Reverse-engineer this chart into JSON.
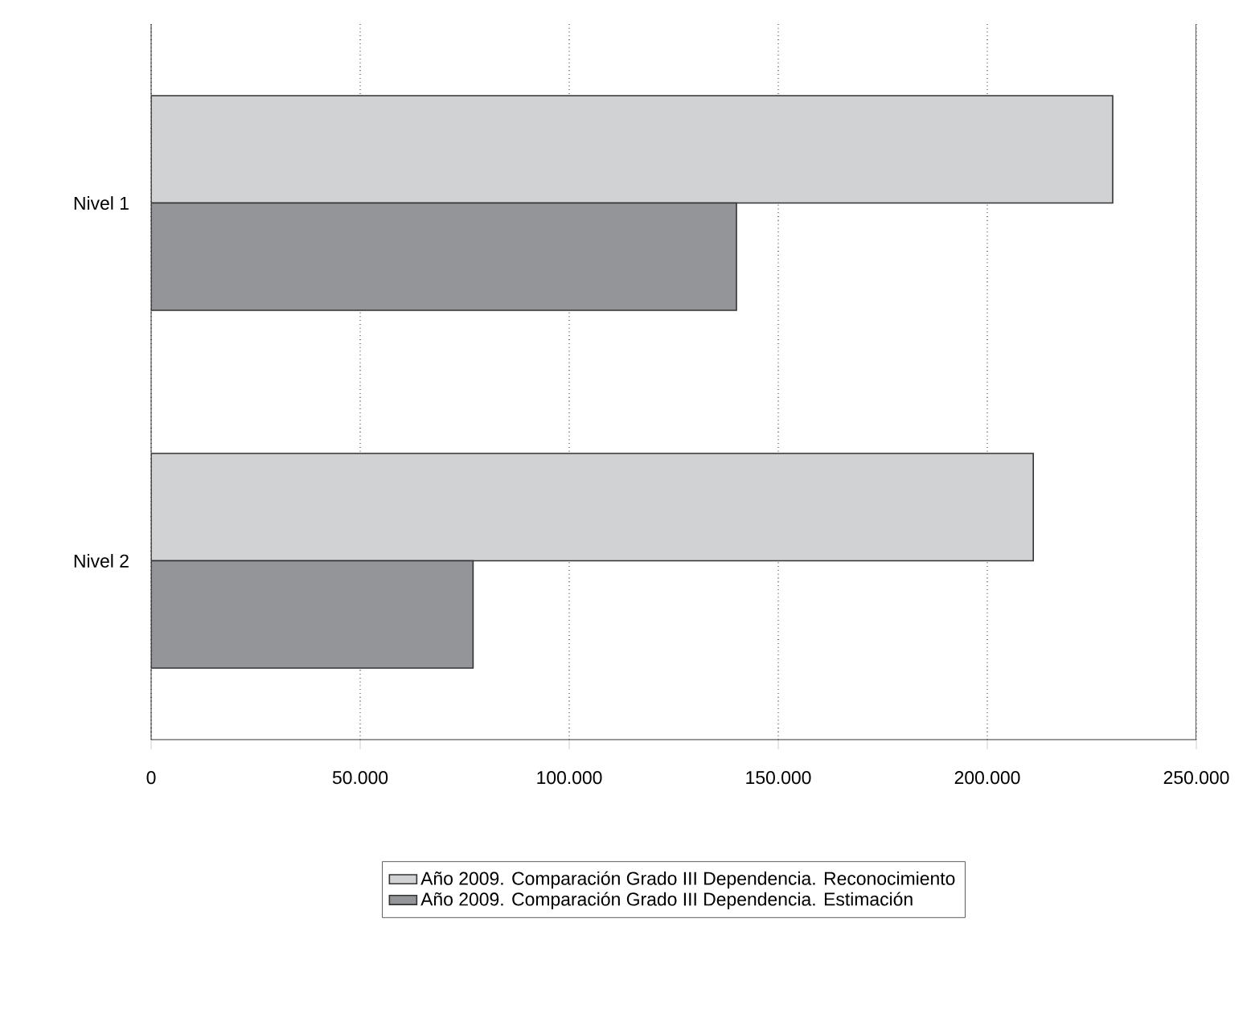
{
  "chart_data": {
    "type": "bar",
    "orientation": "horizontal",
    "categories": [
      "Nivel 1",
      "Nivel 2"
    ],
    "series": [
      {
        "name": "Año 2009. Comparación Grado III Dependencia. Reconocimiento",
        "color": "#d1d2d4",
        "values": [
          230000,
          211000
        ]
      },
      {
        "name": "Año 2009. Comparación Grado III Dependencia. Estimación",
        "color": "#939598",
        "values": [
          140000,
          77000
        ]
      }
    ],
    "xlim": [
      0,
      250000
    ],
    "xticks": [
      0,
      {
        "value": 50000,
        "label": "50.000"
      },
      {
        "value": 100000,
        "label": "100.000"
      },
      {
        "value": 150000,
        "label": "150.000"
      },
      {
        "value": 200000,
        "label": "200.000"
      },
      {
        "value": 250000,
        "label": "250.000"
      }
    ],
    "grid": "x",
    "legend": "bottom"
  }
}
